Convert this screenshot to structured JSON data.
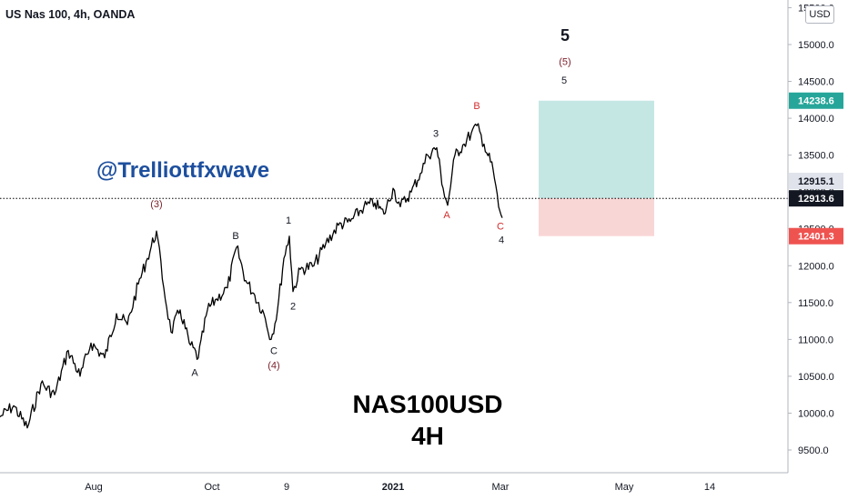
{
  "header": {
    "symbol_title": "US Nas 100, 4h, OANDA"
  },
  "watermark": {
    "text": "@Trelliottfxwave"
  },
  "labels": {
    "instrument": "NAS100USD",
    "timeframe": "4H"
  },
  "axis": {
    "currency": "USD"
  },
  "colors": {
    "candle": "#000000",
    "wave_red": "#d32f2f",
    "wave_dark": "#7b1f2a",
    "target_zone": "#b2dfdb",
    "stop_zone": "#f8cfcf",
    "target_badge": "#26a69a",
    "stop_badge": "#ef5350",
    "watermark": "#1d4f9e"
  },
  "chart_data": {
    "type": "line",
    "title": "US Nas 100, 4h, OANDA",
    "x_tick_labels": [
      "Aug",
      "Oct",
      "9",
      "2021",
      "Mar",
      "May",
      "14"
    ],
    "y_ticks": [
      9500,
      10000,
      10500,
      11000,
      11500,
      12000,
      12500,
      13000,
      13500,
      14000,
      14500,
      15000,
      15500
    ],
    "ylim": [
      9250,
      15550
    ],
    "grid": false,
    "series": [
      {
        "points": [
          [
            0,
            9950
          ],
          [
            15,
            10100
          ],
          [
            30,
            9800
          ],
          [
            45,
            10400
          ],
          [
            60,
            10250
          ],
          [
            75,
            10850
          ],
          [
            88,
            10500
          ],
          [
            100,
            10950
          ],
          [
            115,
            10750
          ],
          [
            128,
            11350
          ],
          [
            140,
            11200
          ],
          [
            152,
            11750
          ],
          [
            162,
            12100
          ],
          [
            172,
            12470
          ],
          [
            180,
            11700
          ],
          [
            188,
            11100
          ],
          [
            198,
            11400
          ],
          [
            208,
            10950
          ],
          [
            218,
            10750
          ],
          [
            228,
            11400
          ],
          [
            238,
            11550
          ],
          [
            250,
            11700
          ],
          [
            260,
            12250
          ],
          [
            270,
            11800
          ],
          [
            280,
            11600
          ],
          [
            290,
            11350
          ],
          [
            298,
            11000
          ],
          [
            305,
            11400
          ],
          [
            312,
            12100
          ],
          [
            318,
            12400
          ],
          [
            322,
            11650
          ],
          [
            330,
            11950
          ],
          [
            345,
            12000
          ],
          [
            358,
            12300
          ],
          [
            372,
            12550
          ],
          [
            385,
            12600
          ],
          [
            400,
            12800
          ],
          [
            412,
            12850
          ],
          [
            422,
            12700
          ],
          [
            432,
            13050
          ],
          [
            440,
            12800
          ],
          [
            452,
            13000
          ],
          [
            462,
            13250
          ],
          [
            470,
            13500
          ],
          [
            480,
            13600
          ],
          [
            487,
            13050
          ],
          [
            492,
            12820
          ],
          [
            500,
            13500
          ],
          [
            510,
            13650
          ],
          [
            518,
            13800
          ],
          [
            524,
            13900
          ],
          [
            532,
            13650
          ],
          [
            542,
            13300
          ],
          [
            548,
            12800
          ],
          [
            552,
            12650
          ]
        ]
      }
    ],
    "current_price": 12913.6,
    "price_badges": [
      12915.1,
      12913.6
    ],
    "position": {
      "target": 14238.6,
      "entry": 12915.1,
      "stop": 12401.3
    },
    "wave_labels": [
      {
        "text": "(3)",
        "x": 172,
        "price": 12470,
        "color": "dark"
      },
      {
        "text": "A",
        "x": 214,
        "price": 10750,
        "color": "black"
      },
      {
        "text": "B",
        "x": 259,
        "price": 12250,
        "color": "black"
      },
      {
        "text": "C",
        "x": 301,
        "price": 11000,
        "color": "black"
      },
      {
        "text": "(4)",
        "x": 301,
        "price": 11000,
        "color": "dark"
      },
      {
        "text": "1",
        "x": 317,
        "price": 12400,
        "color": "black"
      },
      {
        "text": "2",
        "x": 322,
        "price": 11650,
        "color": "black"
      },
      {
        "text": "3",
        "x": 479,
        "price": 13600,
        "color": "black"
      },
      {
        "text": "A",
        "x": 491,
        "price": 12820,
        "color": "red"
      },
      {
        "text": "B",
        "x": 524,
        "price": 13900,
        "color": "red"
      },
      {
        "text": "C",
        "x": 550,
        "price": 12650,
        "color": "red"
      },
      {
        "text": "4",
        "x": 551,
        "price": 12650,
        "color": "black"
      },
      {
        "text": "5",
        "x": 621,
        "price": 15050,
        "color": "black"
      },
      {
        "text": "(5)",
        "x": 621,
        "price": 14720,
        "color": "dark"
      },
      {
        "text": "5",
        "x": 620,
        "price": 14470,
        "color": "black"
      }
    ]
  }
}
